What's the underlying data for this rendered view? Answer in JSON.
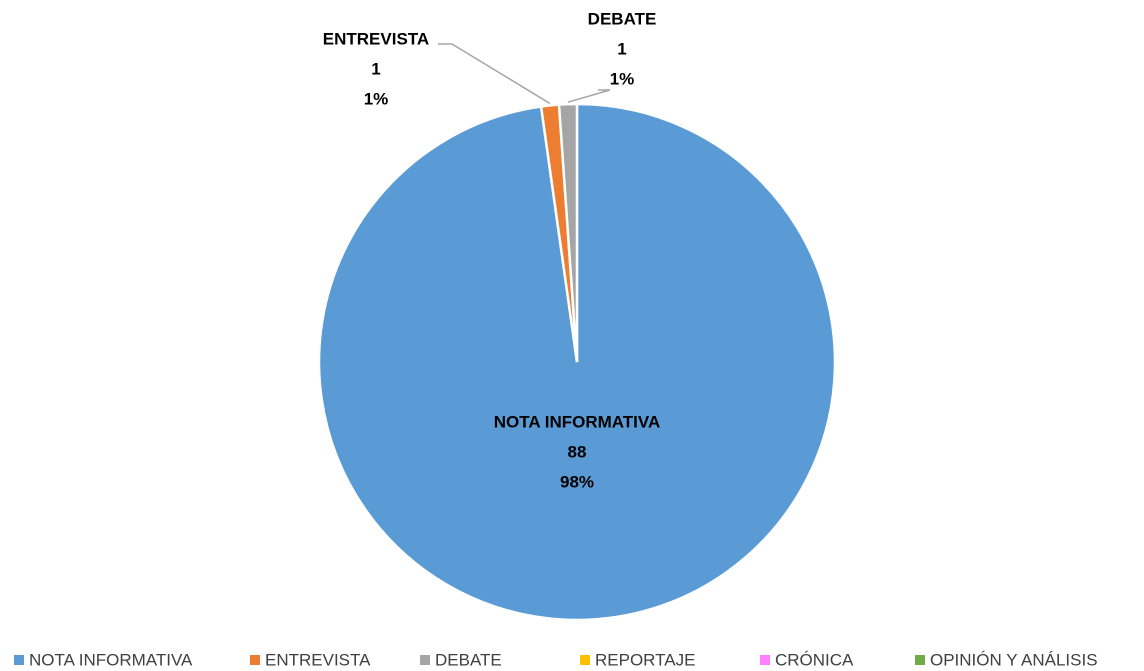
{
  "chart_data": {
    "type": "pie",
    "categories": [
      "NOTA INFORMATIVA",
      "ENTREVISTA",
      "DEBATE",
      "REPORTAJE",
      "CRÓNICA",
      "OPINIÓN Y ANÁLISIS"
    ],
    "values": [
      88,
      1,
      1,
      0,
      0,
      0
    ],
    "percent_labels": [
      "98%",
      "1%",
      "1%",
      null,
      null,
      null
    ],
    "colors": [
      "#5b9bd5",
      "#ed7d31",
      "#a5a5a5",
      "#ffc000",
      "#ff80ff",
      "#70ad47"
    ],
    "legend": "bottom"
  }
}
